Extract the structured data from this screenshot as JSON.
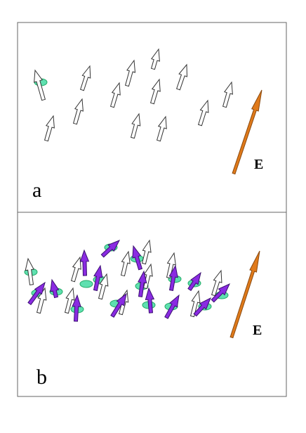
{
  "panels": [
    {
      "label": "a",
      "field_label": "E"
    },
    {
      "label": "b",
      "field_label": "E"
    }
  ]
}
